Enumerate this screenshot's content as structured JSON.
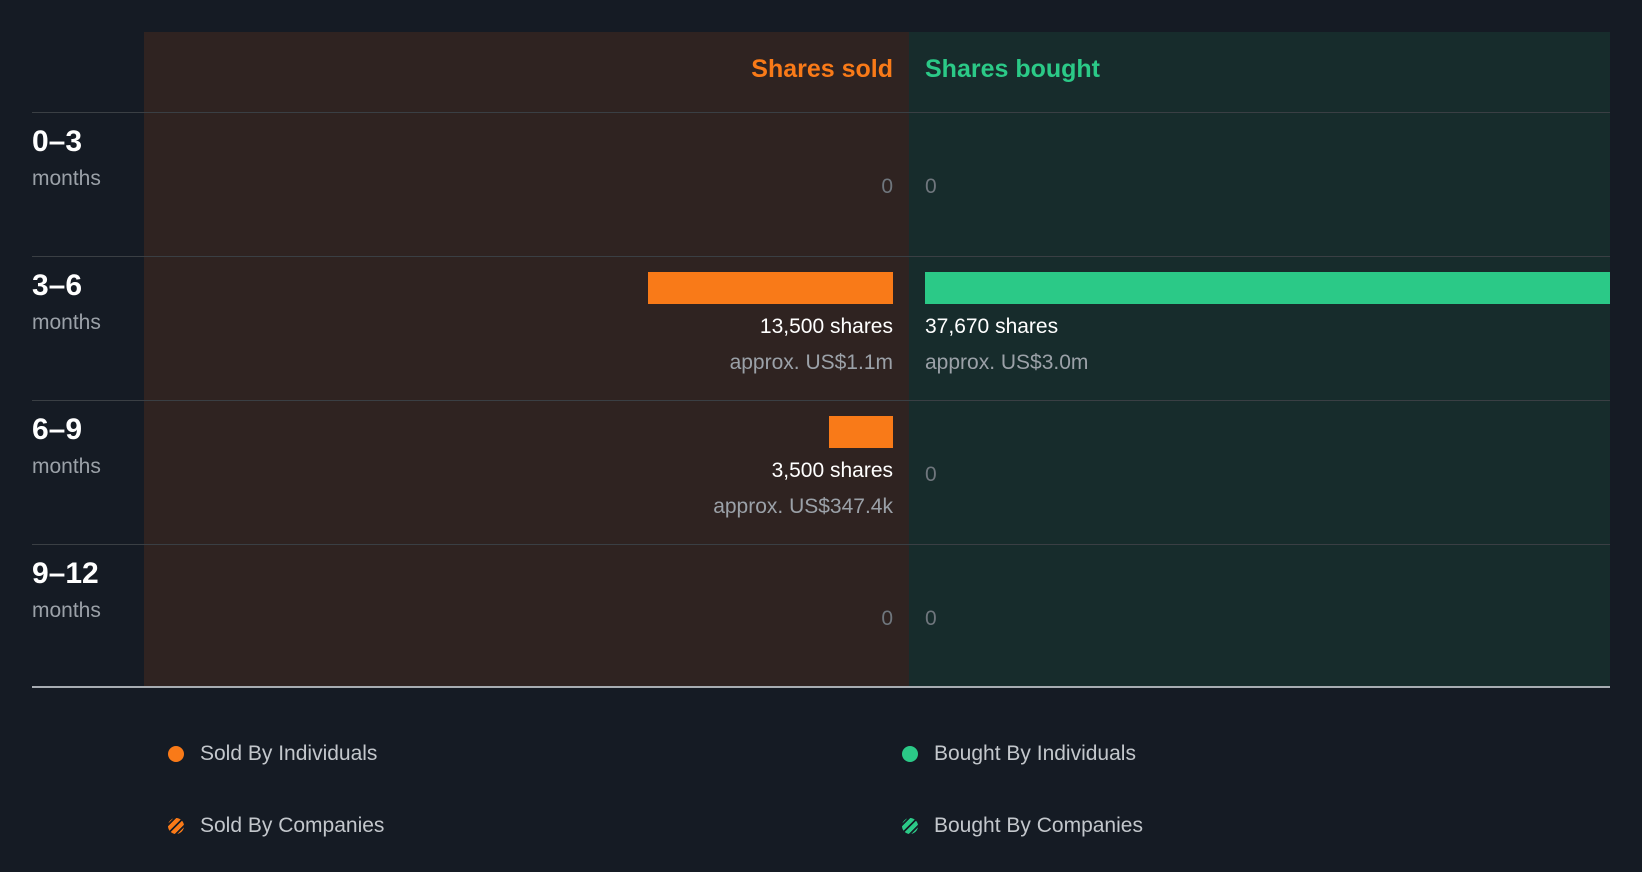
{
  "chart_data": {
    "type": "bar",
    "title": "",
    "headers": {
      "sold": "Shares sold",
      "bought": "Shares bought"
    },
    "colors": {
      "sold": "#f97a18",
      "bought": "#2bc987"
    },
    "max_shares": 37670,
    "periods": [
      {
        "range": "0–3",
        "unit": "months",
        "sold": {
          "shares": 0,
          "label": "0",
          "approx": ""
        },
        "bought": {
          "shares": 0,
          "label": "0",
          "approx": ""
        }
      },
      {
        "range": "3–6",
        "unit": "months",
        "sold": {
          "shares": 13500,
          "label": "13,500 shares",
          "approx": "approx. US$1.1m"
        },
        "bought": {
          "shares": 37670,
          "label": "37,670 shares",
          "approx": "approx. US$3.0m"
        }
      },
      {
        "range": "6–9",
        "unit": "months",
        "sold": {
          "shares": 3500,
          "label": "3,500 shares",
          "approx": "approx. US$347.4k"
        },
        "bought": {
          "shares": 0,
          "label": "0",
          "approx": ""
        }
      },
      {
        "range": "9–12",
        "unit": "months",
        "sold": {
          "shares": 0,
          "label": "0",
          "approx": ""
        },
        "bought": {
          "shares": 0,
          "label": "0",
          "approx": ""
        }
      }
    ],
    "legend": [
      {
        "label": "Sold By Individuals",
        "style": "sold"
      },
      {
        "label": "Bought By Individuals",
        "style": "bought"
      },
      {
        "label": "Sold By Companies",
        "style": "sold-hatch"
      },
      {
        "label": "Bought By Companies",
        "style": "bought-hatch"
      }
    ]
  }
}
